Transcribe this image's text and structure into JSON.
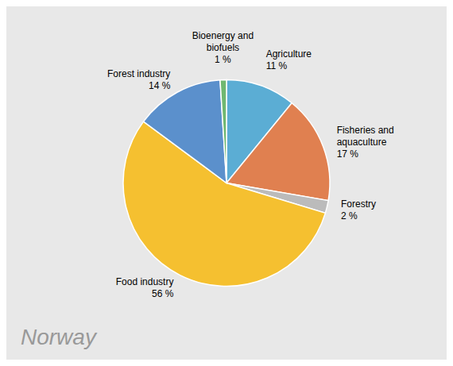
{
  "chart_data": {
    "type": "pie",
    "categories": [
      "Agriculture",
      "Fisheries and\naquaculture",
      "Forestry",
      "Food industry",
      "Forest industry",
      "Bioenergy and\nbiofuels"
    ],
    "values": [
      11,
      17,
      2,
      56,
      14,
      1
    ],
    "value_labels": [
      "11 %",
      "17 %",
      "2 %",
      "56 %",
      "14 %",
      "1 %"
    ],
    "colors": [
      "#5badd4",
      "#e08050",
      "#bbbbbb",
      "#f5c030",
      "#5b90cc",
      "#70b870"
    ],
    "annotations": [
      "Norway"
    ]
  }
}
